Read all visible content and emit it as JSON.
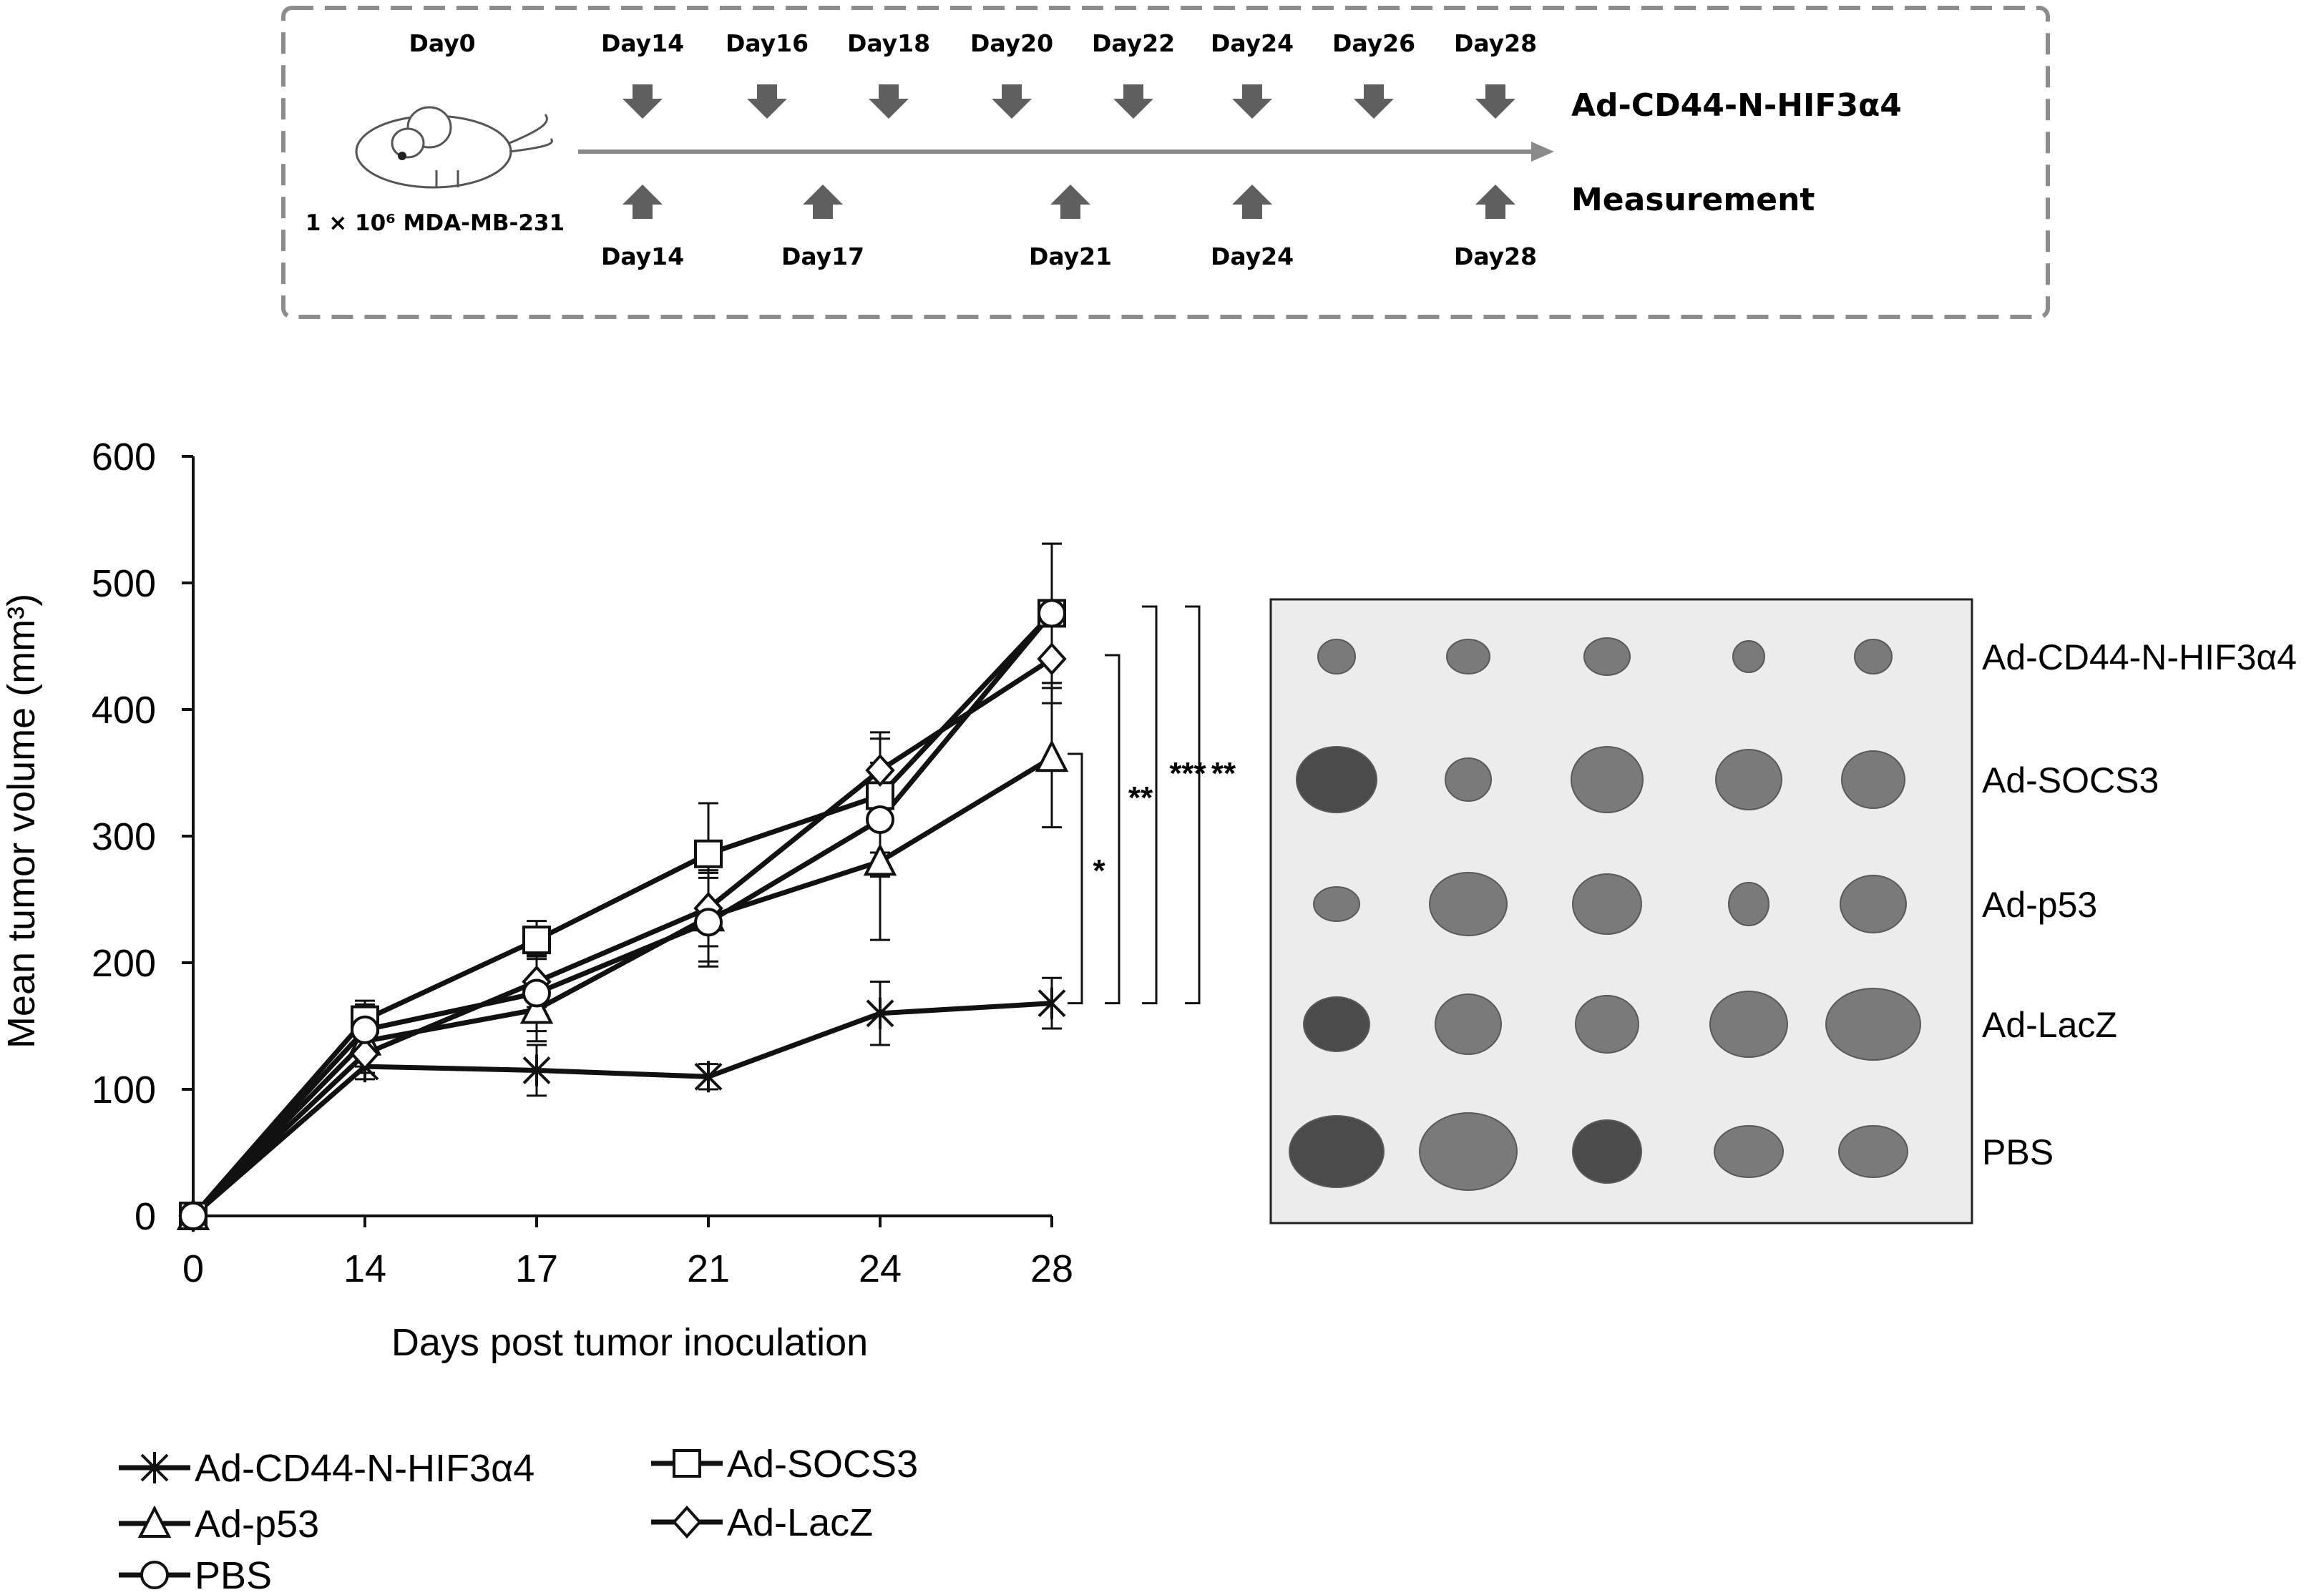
{
  "timeline": {
    "day0_label": "Day0",
    "inoculation_label": "1 × 10⁶ MDA-MB-231",
    "injection_days": [
      "Day14",
      "Day16",
      "Day18",
      "Day20",
      "Day22",
      "Day24",
      "Day26",
      "Day28"
    ],
    "injection_label": "Ad-CD44-N-HIF3α4",
    "measurement_days": [
      "Day14",
      "Day17",
      "Day21",
      "Day24",
      "Day28"
    ],
    "measurement_label": "Measurement",
    "colors": {
      "arrow": "#5f5f5f",
      "axis": "#8a8a8a",
      "border": "#8c8c8c"
    },
    "icons": {
      "mouse": "mouse-icon",
      "down_arrow": "down-arrow-icon",
      "up_arrow": "up-arrow-icon"
    }
  },
  "chart_data": {
    "type": "line",
    "xlabel": "Days post tumor inoculation",
    "ylabel": "Mean tumor volume (mm³)",
    "categories": [
      "0",
      "14",
      "17",
      "21",
      "24",
      "28"
    ],
    "ylim": [
      0,
      600
    ],
    "yticks": [
      0,
      100,
      200,
      300,
      400,
      500,
      600
    ],
    "grid": false,
    "legend_position": "bottom",
    "series": [
      {
        "name": "Ad-CD44-N-HIF3α4",
        "marker": "x",
        "values": [
          0,
          118,
          115,
          110,
          160,
          168
        ],
        "errors": [
          0,
          10,
          20,
          10,
          25,
          20
        ]
      },
      {
        "name": "Ad-SOCS3",
        "marker": "square",
        "values": [
          0,
          155,
          218,
          286,
          332,
          476
        ],
        "errors": [
          0,
          15,
          15,
          40,
          45,
          55
        ]
      },
      {
        "name": "Ad-p53",
        "marker": "triangle",
        "values": [
          0,
          138,
          163,
          236,
          280,
          362
        ],
        "errors": [
          0,
          20,
          25,
          35,
          62,
          55
        ]
      },
      {
        "name": "Ad-LacZ",
        "marker": "diamond",
        "values": [
          0,
          128,
          185,
          243,
          352,
          440
        ],
        "errors": [
          0,
          15,
          20,
          30,
          30,
          35
        ]
      },
      {
        "name": "PBS",
        "marker": "circle",
        "values": [
          0,
          147,
          176,
          232,
          313,
          476
        ],
        "errors": [
          0,
          20,
          30,
          35,
          45,
          55
        ]
      }
    ],
    "significance": [
      "*",
      "**",
      "***",
      "**"
    ],
    "colors": {
      "line": "#111111",
      "marker_fill": "#ffffff"
    }
  },
  "photo": {
    "row_labels": [
      "Ad-CD44-N-HIF3α4",
      "Ad-SOCS3",
      "Ad-p53",
      "Ad-LacZ",
      "PBS"
    ],
    "colors": {
      "background": "#ececec",
      "tumor": "#6e6e6e",
      "tumor_dark": "#3a3a3a"
    }
  }
}
